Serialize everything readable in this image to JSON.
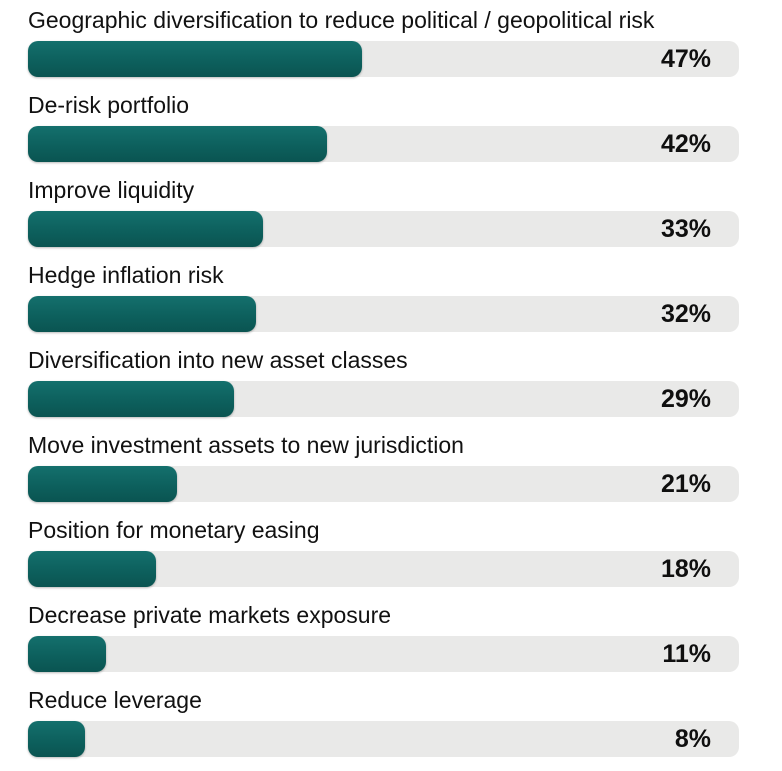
{
  "chart_data": {
    "type": "bar",
    "orientation": "horizontal",
    "title": "",
    "xlabel": "",
    "ylabel": "",
    "xlim": [
      0,
      100
    ],
    "grid": false,
    "legend": "none",
    "bar_color": "#0d605d",
    "track_color": "#e9e9e8",
    "text_color": "#111111",
    "categories": [
      "Geographic diversification to reduce political / geopolitical risk",
      "De-risk portfolio",
      "Improve liquidity",
      "Hedge inflation risk",
      "Diversification into new asset classes",
      "Move investment assets to new jurisdiction",
      "Position for monetary easing",
      "Decrease private markets exposure",
      "Reduce leverage"
    ],
    "values": [
      47,
      42,
      33,
      32,
      29,
      21,
      18,
      11,
      8
    ],
    "value_labels": [
      "47%",
      "42%",
      "33%",
      "32%",
      "29%",
      "21%",
      "18%",
      "11%",
      "8%"
    ]
  }
}
